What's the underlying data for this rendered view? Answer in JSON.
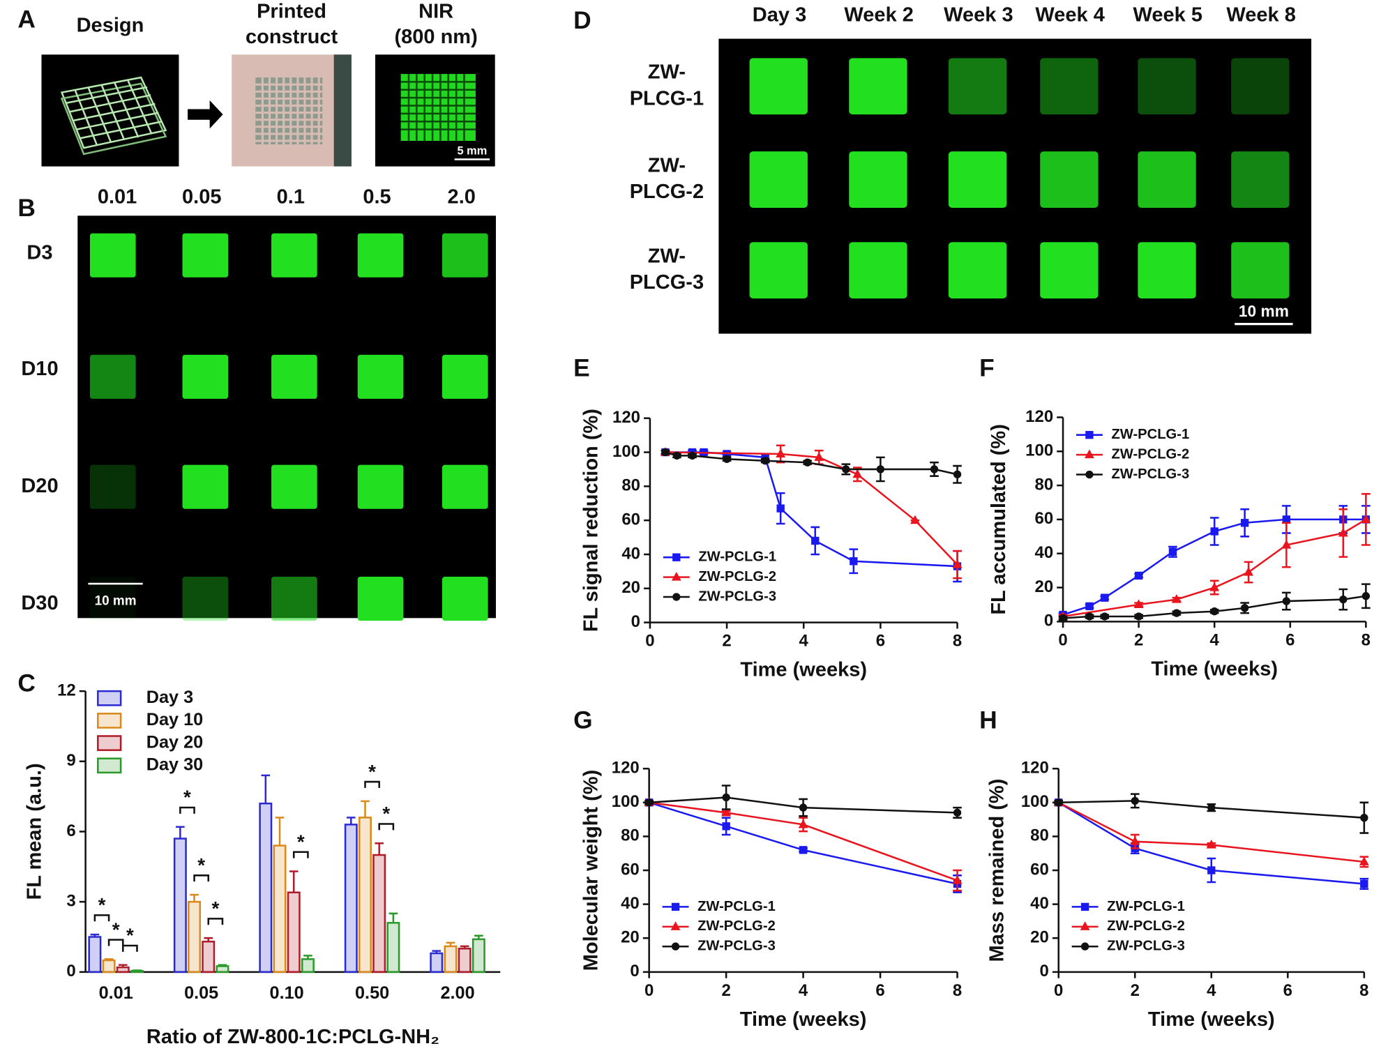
{
  "panel_a": {
    "panel_label": "A",
    "design": "Design",
    "printed": [
      "Printed",
      "construct"
    ],
    "nir": [
      "NIR",
      "(800 nm)"
    ],
    "scale_bar": "5 mm"
  },
  "panel_b": {
    "panel_label": "B",
    "columns": [
      "0.01",
      "0.05",
      "0.1",
      "0.5",
      "2.0"
    ],
    "rows": [
      "D3",
      "D10",
      "D20",
      "D30"
    ],
    "scale_bar": "10 mm"
  },
  "panel_d": {
    "panel_label": "D",
    "columns": [
      "Day 3",
      "Week 2",
      "Week 3",
      "Week 4",
      "Week 5",
      "Week 8"
    ],
    "rows": [
      [
        "ZW-",
        "PLCG-1"
      ],
      [
        "ZW-",
        "PLCG-2"
      ],
      [
        "ZW-",
        "PLCG-3"
      ]
    ],
    "scale_bar": "10 mm"
  },
  "chart_data": [
    {
      "type": "bar",
      "panel_label": "C",
      "ylabel": "FL mean (a.u.)",
      "xlabel": "Ratio of ZW-800-1C:PCLG-NH₂",
      "categories": [
        "0.01",
        "0.05",
        "0.10",
        "0.50",
        "2.00"
      ],
      "ylim": [
        0,
        12
      ],
      "yticks": [
        0,
        3,
        6,
        9,
        12
      ],
      "legend": "upper left",
      "series": [
        {
          "name": "Day 3",
          "color": "#2b2bd0",
          "values": [
            1.5,
            5.7,
            7.2,
            6.3,
            0.8
          ],
          "errors": [
            0.1,
            0.5,
            1.2,
            0.3,
            0.1
          ]
        },
        {
          "name": "Day 10",
          "color": "#d98a1a",
          "values": [
            0.5,
            3.0,
            5.4,
            6.6,
            1.1
          ],
          "errors": [
            0.05,
            0.3,
            1.2,
            0.7,
            0.15
          ]
        },
        {
          "name": "Day 20",
          "color": "#b01c2a",
          "values": [
            0.2,
            1.3,
            3.4,
            5.0,
            1.0
          ],
          "errors": [
            0.1,
            0.15,
            0.9,
            0.5,
            0.1
          ]
        },
        {
          "name": "Day 30",
          "color": "#2a9a2a",
          "values": [
            0.05,
            0.25,
            0.55,
            2.1,
            1.4
          ],
          "errors": [
            0.02,
            0.05,
            0.15,
            0.4,
            0.15
          ]
        }
      ],
      "significance": [
        {
          "category": "0.01",
          "pair": [
            "Day 3",
            "Day 10"
          ],
          "label": "*"
        },
        {
          "category": "0.01",
          "pair": [
            "Day 10",
            "Day 20"
          ],
          "label": "*"
        },
        {
          "category": "0.01",
          "pair": [
            "Day 20",
            "Day 30"
          ],
          "label": "*"
        },
        {
          "category": "0.05",
          "pair": [
            "Day 3",
            "Day 10"
          ],
          "label": "*"
        },
        {
          "category": "0.05",
          "pair": [
            "Day 10",
            "Day 20"
          ],
          "label": "*"
        },
        {
          "category": "0.05",
          "pair": [
            "Day 20",
            "Day 30"
          ],
          "label": "*"
        },
        {
          "category": "0.10",
          "pair": [
            "Day 20",
            "Day 30"
          ],
          "label": "*"
        },
        {
          "category": "0.50",
          "pair": [
            "Day 10",
            "Day 20"
          ],
          "label": "*"
        },
        {
          "category": "0.50",
          "pair": [
            "Day 20",
            "Day 30"
          ],
          "label": "*"
        }
      ]
    },
    {
      "type": "line",
      "panel_label": "E",
      "ylabel": "FL signal reduction (%)",
      "xlabel": "Time (weeks)",
      "xlim": [
        0,
        8
      ],
      "xticks": [
        0,
        2,
        4,
        6,
        8
      ],
      "ylim": [
        0,
        120
      ],
      "yticks": [
        0,
        20,
        40,
        60,
        80,
        100,
        120
      ],
      "legend": "lower left",
      "series": [
        {
          "name": "ZW-PCLG-1",
          "color": "#1a1aee",
          "marker": "square",
          "x": [
            0.4,
            1.1,
            1.4,
            2,
            3,
            3.4,
            4.3,
            5.3,
            8
          ],
          "values": [
            100,
            100,
            100,
            99,
            97,
            67,
            48,
            36,
            33
          ],
          "errors": [
            1,
            1,
            1,
            1,
            2,
            9,
            8,
            7,
            9
          ]
        },
        {
          "name": "ZW-PCLG-2",
          "color": "#e8141e",
          "marker": "triangle",
          "x": [
            0.4,
            3.4,
            4.4,
            5.4,
            6.9,
            8
          ],
          "values": [
            100,
            99,
            97,
            87,
            60,
            34
          ],
          "errors": [
            1,
            5,
            4,
            4,
            0,
            8
          ]
        },
        {
          "name": "ZW-PCLG-3",
          "color": "#111111",
          "marker": "circle",
          "x": [
            0.4,
            0.7,
            1.1,
            2,
            3,
            4.1,
            5.1,
            6,
            7.4,
            8
          ],
          "values": [
            100,
            98,
            98,
            96,
            95,
            94,
            90,
            90,
            90,
            87
          ],
          "errors": [
            1,
            1,
            1,
            1,
            1,
            1,
            3,
            7,
            4,
            5
          ]
        }
      ]
    },
    {
      "type": "line",
      "panel_label": "F",
      "ylabel": "FL accumulated (%)",
      "xlabel": "Time (weeks)",
      "xlim": [
        0,
        8
      ],
      "xticks": [
        0,
        2,
        4,
        6,
        8
      ],
      "ylim": [
        0,
        120
      ],
      "yticks": [
        0,
        20,
        40,
        60,
        80,
        100,
        120
      ],
      "legend": "upper left",
      "series": [
        {
          "name": "ZW-PCLG-1",
          "color": "#1a1aee",
          "marker": "square",
          "x": [
            0,
            0.7,
            1.1,
            2,
            2.9,
            4,
            4.8,
            5.9,
            7.4,
            8
          ],
          "values": [
            4,
            9,
            14,
            27,
            41,
            53,
            58,
            60,
            60,
            60
          ],
          "errors": [
            1,
            1,
            1,
            1,
            3,
            8,
            8,
            8,
            8,
            8
          ]
        },
        {
          "name": "ZW-PCLG-2",
          "color": "#e8141e",
          "marker": "triangle",
          "x": [
            0,
            2,
            3,
            4,
            4.9,
            5.9,
            7.4,
            8
          ],
          "values": [
            3,
            10,
            13,
            20,
            29,
            45,
            52,
            60
          ],
          "errors": [
            1,
            1,
            1,
            4,
            6,
            13,
            14,
            15
          ]
        },
        {
          "name": "ZW-PCLG-3",
          "color": "#111111",
          "marker": "circle",
          "x": [
            0,
            0.7,
            1.1,
            2,
            3,
            4,
            4.8,
            5.9,
            7.4,
            8
          ],
          "values": [
            2,
            3,
            3,
            3,
            5,
            6,
            8,
            12,
            13,
            15
          ],
          "errors": [
            1,
            1,
            1,
            1,
            1,
            1,
            3,
            5,
            6,
            7
          ]
        }
      ]
    },
    {
      "type": "line",
      "panel_label": "G",
      "ylabel": "Molecular weight (%)",
      "xlabel": "Time (weeks)",
      "xlim": [
        0,
        8
      ],
      "xticks": [
        0,
        2,
        4,
        6,
        8
      ],
      "ylim": [
        0,
        120
      ],
      "yticks": [
        0,
        20,
        40,
        60,
        80,
        100,
        120
      ],
      "legend": "lower left",
      "series": [
        {
          "name": "ZW-PCLG-1",
          "color": "#1a1aee",
          "marker": "square",
          "x": [
            0,
            2,
            4,
            8
          ],
          "values": [
            100,
            86,
            72,
            52
          ],
          "errors": [
            1,
            5,
            1,
            5
          ]
        },
        {
          "name": "ZW-PCLG-2",
          "color": "#e8141e",
          "marker": "triangle",
          "x": [
            0,
            2,
            4,
            8
          ],
          "values": [
            100,
            94,
            87,
            54
          ],
          "errors": [
            1,
            1,
            4,
            6
          ]
        },
        {
          "name": "ZW-PCLG-3",
          "color": "#111111",
          "marker": "circle",
          "x": [
            0,
            2,
            4,
            8
          ],
          "values": [
            100,
            103,
            97,
            94
          ],
          "errors": [
            1,
            7,
            5,
            3
          ]
        }
      ]
    },
    {
      "type": "line",
      "panel_label": "H",
      "ylabel": "Mass remained (%)",
      "xlabel": "Time (weeks)",
      "xlim": [
        0,
        8
      ],
      "xticks": [
        0,
        2,
        4,
        6,
        8
      ],
      "ylim": [
        0,
        120
      ],
      "yticks": [
        0,
        20,
        40,
        60,
        80,
        100,
        120
      ],
      "legend": "lower left",
      "series": [
        {
          "name": "ZW-PCLG-1",
          "color": "#1a1aee",
          "marker": "square",
          "x": [
            0,
            2,
            4,
            8
          ],
          "values": [
            100,
            73,
            60,
            52
          ],
          "errors": [
            1,
            3,
            7,
            3
          ]
        },
        {
          "name": "ZW-PCLG-2",
          "color": "#e8141e",
          "marker": "triangle",
          "x": [
            0,
            2,
            4,
            8
          ],
          "values": [
            100,
            77,
            75,
            65
          ],
          "errors": [
            1,
            4,
            1,
            3
          ]
        },
        {
          "name": "ZW-PCLG-3",
          "color": "#111111",
          "marker": "circle",
          "x": [
            0,
            2,
            4,
            8
          ],
          "values": [
            100,
            101,
            97,
            91
          ],
          "errors": [
            1,
            4,
            2,
            9
          ]
        }
      ]
    }
  ]
}
